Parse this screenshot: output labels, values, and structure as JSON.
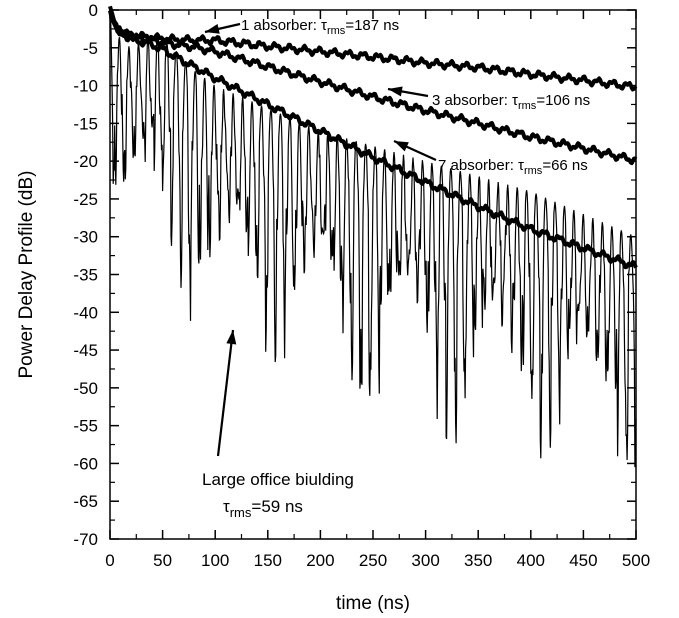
{
  "chart_data": {
    "type": "line",
    "title": "",
    "xlabel": "time (ns)",
    "ylabel": "Power Delay Profile (dB)",
    "xlim": [
      0,
      500
    ],
    "ylim": [
      -70,
      0
    ],
    "x_ticks": [
      0,
      50,
      100,
      150,
      200,
      250,
      300,
      350,
      400,
      450,
      500
    ],
    "y_ticks": [
      0,
      -5,
      -10,
      -15,
      -20,
      -25,
      -30,
      -35,
      -40,
      -45,
      -50,
      -55,
      -60,
      -65,
      -70
    ],
    "grid": false,
    "legend": "none",
    "series": [
      {
        "name": "1 absorber",
        "tau_rms": "187 ns",
        "style": "thick-smooth",
        "x": [
          0,
          5,
          10,
          20,
          30,
          40,
          50,
          60,
          80,
          100,
          150,
          200,
          250,
          300,
          350,
          400,
          450,
          500
        ],
        "y": [
          0,
          -2,
          -3,
          -3.3,
          -3.5,
          -3.7,
          -3.8,
          -3.9,
          -4.0,
          -4.0,
          -4.8,
          -5.5,
          -6.2,
          -7.0,
          -7.6,
          -8.5,
          -9.3,
          -10.2
        ]
      },
      {
        "name": "3 absorber",
        "tau_rms": "106 ns",
        "style": "thick-smooth",
        "x": [
          0,
          5,
          10,
          20,
          30,
          40,
          50,
          60,
          80,
          100,
          150,
          200,
          250,
          300,
          350,
          400,
          450,
          500
        ],
        "y": [
          0,
          -2,
          -3,
          -3.5,
          -3.8,
          -4.0,
          -4.2,
          -4.5,
          -4.9,
          -5.5,
          -7.5,
          -9.5,
          -11.5,
          -13.3,
          -15.0,
          -16.8,
          -18.3,
          -19.9
        ]
      },
      {
        "name": "7 absorber",
        "tau_rms": "66 ns",
        "style": "thick-smooth",
        "x": [
          0,
          5,
          10,
          20,
          30,
          40,
          50,
          60,
          80,
          100,
          150,
          200,
          250,
          300,
          350,
          400,
          450,
          500
        ],
        "y": [
          0,
          -2,
          -3,
          -3.8,
          -4.2,
          -4.6,
          -5.2,
          -6,
          -7.5,
          -9.0,
          -12.5,
          -16.0,
          -19.5,
          -22.8,
          -26.0,
          -29.0,
          -31.5,
          -34.0
        ]
      },
      {
        "name": "Large office biulding",
        "tau_rms": "59 ns",
        "style": "thin-multipath",
        "x": [
          0,
          5,
          10,
          20,
          30,
          40,
          50,
          60,
          80,
          100,
          150,
          200,
          250,
          300,
          350,
          400,
          450,
          500
        ],
        "envelope_upper": [
          0,
          -2,
          -4,
          -5,
          -4,
          -3.5,
          -3.5,
          -5,
          -8,
          -10,
          -13,
          -16,
          -18,
          -20,
          -22,
          -24,
          -27,
          -30
        ],
        "envelope_lower": [
          -30,
          -37,
          -38,
          -34,
          -34,
          -34,
          -34,
          -35,
          -44,
          -46,
          -47,
          -52,
          -56,
          -58,
          -59,
          -60,
          -61,
          -66
        ]
      }
    ],
    "annotations": [
      {
        "id": "ann1",
        "text": "1 absorber: ",
        "tau": "τ",
        "sub": "rms",
        "value": "=187 ns"
      },
      {
        "id": "ann3",
        "text": "3 absorber: ",
        "tau": "τ",
        "sub": "rms",
        "value": "=106 ns"
      },
      {
        "id": "ann7",
        "text": "7 absorber: ",
        "tau": "τ",
        "sub": "rms",
        "value": "=66 ns"
      },
      {
        "id": "annOffice",
        "line1": "Large office biulding",
        "tau": "τ",
        "sub": "rms",
        "value": "=59 ns"
      }
    ]
  }
}
